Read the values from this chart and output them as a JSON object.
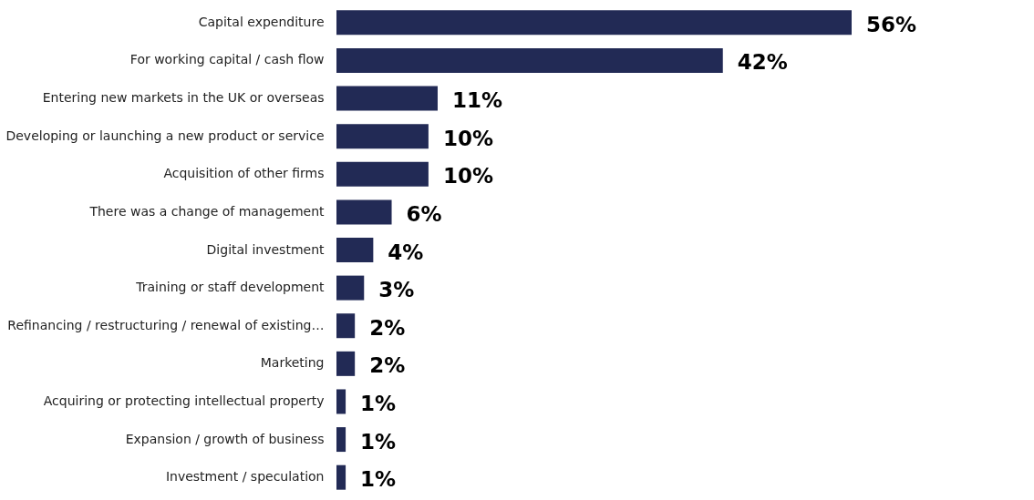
{
  "chart_data": {
    "type": "bar",
    "orientation": "horizontal",
    "categories": [
      "Capital expenditure",
      "For working capital / cash flow",
      "Entering new markets in the UK or overseas",
      "Developing or launching a new product or service",
      "Acquisition of other firms",
      "There was a change of management",
      "Digital investment",
      "Training or staff development",
      "Refinancing / restructuring / renewal of existing…",
      "Marketing",
      "Acquiring or protecting intellectual property",
      "Expansion / growth of business",
      "Investment / speculation"
    ],
    "values": [
      56,
      42,
      11,
      10,
      10,
      6,
      4,
      3,
      2,
      2,
      1,
      1,
      1
    ],
    "value_labels": [
      "56%",
      "42%",
      "11%",
      "10%",
      "10%",
      "6%",
      "4%",
      "3%",
      "2%",
      "2%",
      "1%",
      "1%",
      "1%"
    ],
    "color": "#222a55"
  }
}
